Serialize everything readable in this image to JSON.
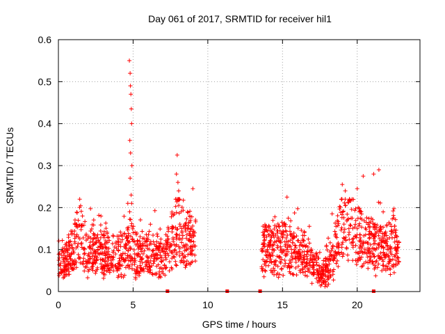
{
  "chart_data": {
    "type": "scatter",
    "title": "Day 061 of 2017, SRMTID for receiver hil1",
    "xlabel": "GPS time / hours",
    "ylabel": "SRMTID / TECUs",
    "xlim": [
      0,
      24.2
    ],
    "ylim": [
      0,
      0.6
    ],
    "xticks": [
      0,
      5,
      10,
      15,
      20
    ],
    "xtick_labels": [
      "0",
      "5",
      "10",
      "15",
      "20"
    ],
    "yticks": [
      0,
      0.1,
      0.2,
      0.3,
      0.4,
      0.5,
      0.6
    ],
    "ytick_labels": [
      "0",
      "0.1",
      "0.2",
      "0.3",
      "0.4",
      "0.5",
      "0.6"
    ],
    "grid": true,
    "marker": "plus",
    "color": "#ff0000",
    "series": [
      {
        "name": "SRMTID",
        "segments": [
          {
            "x_start": 0.0,
            "x_end": 9.2,
            "profile": [
              [
                0.0,
                0.07
              ],
              [
                0.5,
                0.075
              ],
              [
                1.0,
                0.1
              ],
              [
                1.4,
                0.15
              ],
              [
                1.7,
                0.1
              ],
              [
                2.5,
                0.095
              ],
              [
                3.5,
                0.085
              ],
              [
                4.3,
                0.08
              ],
              [
                4.8,
                0.11
              ],
              [
                5.2,
                0.08
              ],
              [
                6.0,
                0.09
              ],
              [
                7.0,
                0.08
              ],
              [
                7.5,
                0.11
              ],
              [
                8.0,
                0.15
              ],
              [
                8.5,
                0.13
              ],
              [
                9.2,
                0.12
              ]
            ]
          },
          {
            "x_start": 13.6,
            "x_end": 22.8,
            "profile": [
              [
                13.6,
                0.1
              ],
              [
                14.5,
                0.105
              ],
              [
                15.5,
                0.1
              ],
              [
                16.5,
                0.085
              ],
              [
                17.2,
                0.06
              ],
              [
                17.6,
                0.035
              ],
              [
                18.2,
                0.06
              ],
              [
                18.8,
                0.14
              ],
              [
                19.5,
                0.15
              ],
              [
                20.2,
                0.13
              ],
              [
                21.0,
                0.11
              ],
              [
                21.8,
                0.1
              ],
              [
                22.4,
                0.12
              ],
              [
                22.8,
                0.08
              ]
            ]
          }
        ],
        "spikes": [
          [
            4.75,
            0.55
          ],
          [
            4.8,
            0.52
          ],
          [
            4.82,
            0.49
          ],
          [
            4.85,
            0.47
          ],
          [
            4.88,
            0.435
          ],
          [
            4.9,
            0.4
          ],
          [
            4.78,
            0.36
          ],
          [
            4.83,
            0.33
          ],
          [
            4.92,
            0.3
          ],
          [
            4.8,
            0.27
          ],
          [
            4.87,
            0.23
          ],
          [
            4.9,
            0.21
          ],
          [
            4.77,
            0.19
          ],
          [
            7.95,
            0.325
          ],
          [
            7.9,
            0.28
          ],
          [
            8.0,
            0.26
          ],
          [
            8.05,
            0.24
          ],
          [
            7.85,
            0.22
          ],
          [
            9.0,
            0.245
          ],
          [
            20.4,
            0.275
          ],
          [
            21.1,
            0.28
          ],
          [
            21.45,
            0.29
          ],
          [
            19.0,
            0.255
          ],
          [
            20.0,
            0.245
          ],
          [
            19.2,
            0.24
          ],
          [
            15.3,
            0.225
          ]
        ],
        "gap_markers": [
          7.3,
          11.3,
          13.5,
          21.1
        ]
      }
    ]
  }
}
